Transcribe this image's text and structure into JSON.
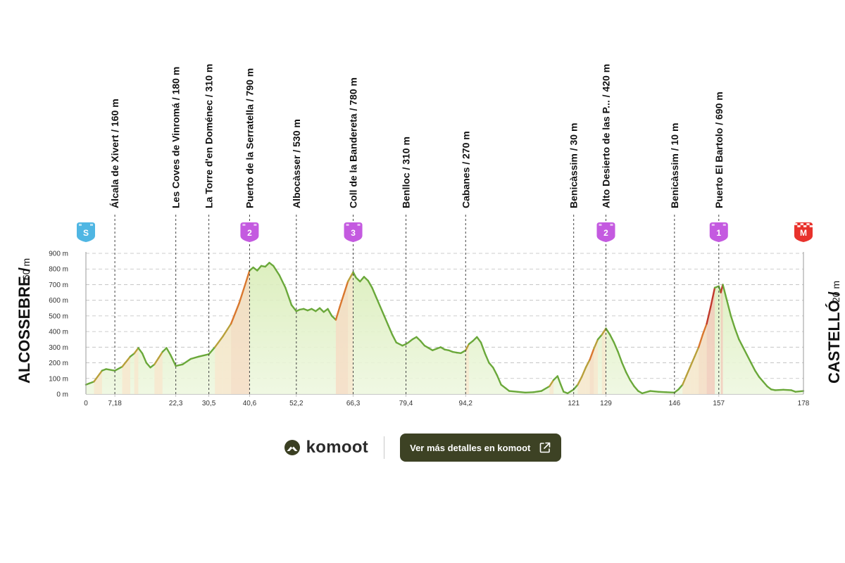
{
  "chart_data": {
    "type": "area",
    "title": "",
    "xlabel": "",
    "ylabel": "",
    "xlim": [
      0,
      178
    ],
    "ylim": [
      0,
      900
    ],
    "y_unit": "m",
    "yticks": [
      {
        "v": 0,
        "label": "0 m"
      },
      {
        "v": 100,
        "label": "100 m"
      },
      {
        "v": 200,
        "label": "200 m"
      },
      {
        "v": 300,
        "label": "300 m"
      },
      {
        "v": 400,
        "label": "400 m"
      },
      {
        "v": 500,
        "label": "500 m"
      },
      {
        "v": 600,
        "label": "600 m"
      },
      {
        "v": 700,
        "label": "700 m"
      },
      {
        "v": 800,
        "label": "800 m"
      },
      {
        "v": 900,
        "label": "900 m"
      }
    ],
    "xticks": [
      {
        "v": 0,
        "label": "0"
      },
      {
        "v": 7.18,
        "label": "7,18"
      },
      {
        "v": 22.3,
        "label": "22,3"
      },
      {
        "v": 30.5,
        "label": "30,5"
      },
      {
        "v": 40.6,
        "label": "40,6"
      },
      {
        "v": 52.2,
        "label": "52,2"
      },
      {
        "v": 66.3,
        "label": "66,3"
      },
      {
        "v": 79.4,
        "label": "79,4"
      },
      {
        "v": 94.2,
        "label": "94,2"
      },
      {
        "v": 121,
        "label": "121"
      },
      {
        "v": 129,
        "label": "129"
      },
      {
        "v": 146,
        "label": "146"
      },
      {
        "v": 157,
        "label": "157"
      },
      {
        "v": 178,
        "label": "178"
      }
    ],
    "grid": true,
    "start": {
      "name": "ALCOSSEBRE /",
      "alt": "60 m",
      "badge": "S",
      "badge_color": "#4fb6e3"
    },
    "finish": {
      "name": "CASTELLÓ /",
      "alt": "20 m",
      "badge": "M",
      "badge_color": "#e8322c"
    },
    "waypoints": [
      {
        "km": 7.18,
        "label": "Álcala de Xivert / 160 m"
      },
      {
        "km": 22.3,
        "label": "Les Coves de Vinromá / 180 m"
      },
      {
        "km": 30.5,
        "label": "La Torre d'en Doménec / 310 m"
      },
      {
        "km": 40.6,
        "label": "Puerto de la Serratella / 790 m",
        "cat": "2"
      },
      {
        "km": 52.2,
        "label": "Albocàsser / 530 m"
      },
      {
        "km": 66.3,
        "label": "Coll de la Bandereta / 780 m",
        "cat": "3"
      },
      {
        "km": 79.4,
        "label": "Benlloc / 310 m"
      },
      {
        "km": 94.2,
        "label": "Cabanes / 270 m"
      },
      {
        "km": 121,
        "label": "Benicàssim / 30 m"
      },
      {
        "km": 129,
        "label": "Alto Desierto de las P... / 420 m",
        "cat": "2"
      },
      {
        "km": 146,
        "label": "Benicàssim / 10 m"
      },
      {
        "km": 157,
        "label": "Puerto El Bartolo / 690 m",
        "cat": "1"
      }
    ],
    "climb_badge_color": "#c45ae0",
    "profile": [
      [
        0,
        60
      ],
      [
        2,
        80
      ],
      [
        4,
        150
      ],
      [
        5,
        160
      ],
      [
        7.18,
        150
      ],
      [
        9,
        175
      ],
      [
        11,
        240
      ],
      [
        12,
        260
      ],
      [
        13,
        295
      ],
      [
        14,
        260
      ],
      [
        15,
        200
      ],
      [
        16,
        170
      ],
      [
        17,
        190
      ],
      [
        18,
        230
      ],
      [
        19,
        270
      ],
      [
        20,
        295
      ],
      [
        21,
        250
      ],
      [
        22.3,
        180
      ],
      [
        24,
        190
      ],
      [
        26,
        225
      ],
      [
        28,
        240
      ],
      [
        30.5,
        255
      ],
      [
        32,
        300
      ],
      [
        34,
        370
      ],
      [
        36,
        450
      ],
      [
        38,
        580
      ],
      [
        39.5,
        700
      ],
      [
        40.6,
        790
      ],
      [
        41.5,
        810
      ],
      [
        42.5,
        790
      ],
      [
        43.5,
        820
      ],
      [
        44.5,
        815
      ],
      [
        45.5,
        840
      ],
      [
        46.5,
        820
      ],
      [
        48,
        760
      ],
      [
        49.5,
        680
      ],
      [
        51,
        570
      ],
      [
        52.2,
        530
      ],
      [
        53,
        540
      ],
      [
        54,
        545
      ],
      [
        55,
        535
      ],
      [
        56,
        545
      ],
      [
        57,
        530
      ],
      [
        58,
        550
      ],
      [
        59,
        525
      ],
      [
        60,
        545
      ],
      [
        61,
        500
      ],
      [
        62,
        475
      ],
      [
        63,
        560
      ],
      [
        64,
        640
      ],
      [
        65,
        720
      ],
      [
        66.3,
        780
      ],
      [
        67,
        745
      ],
      [
        68,
        720
      ],
      [
        69,
        750
      ],
      [
        70,
        725
      ],
      [
        71,
        680
      ],
      [
        72,
        620
      ],
      [
        73,
        560
      ],
      [
        74,
        500
      ],
      [
        75,
        440
      ],
      [
        76,
        380
      ],
      [
        77,
        330
      ],
      [
        78.5,
        310
      ],
      [
        79.4,
        320
      ],
      [
        80,
        330
      ],
      [
        81,
        350
      ],
      [
        82,
        365
      ],
      [
        83,
        340
      ],
      [
        84,
        310
      ],
      [
        85,
        295
      ],
      [
        86,
        280
      ],
      [
        87,
        290
      ],
      [
        88,
        300
      ],
      [
        89,
        285
      ],
      [
        90,
        280
      ],
      [
        91,
        270
      ],
      [
        92,
        265
      ],
      [
        93,
        262
      ],
      [
        94.2,
        280
      ],
      [
        95,
        320
      ],
      [
        96,
        340
      ],
      [
        97,
        365
      ],
      [
        98,
        330
      ],
      [
        99,
        260
      ],
      [
        100,
        200
      ],
      [
        101,
        170
      ],
      [
        102,
        120
      ],
      [
        103,
        60
      ],
      [
        104,
        40
      ],
      [
        105,
        20
      ],
      [
        107,
        15
      ],
      [
        109,
        10
      ],
      [
        111,
        12
      ],
      [
        113,
        20
      ],
      [
        115,
        50
      ],
      [
        116,
        90
      ],
      [
        117,
        115
      ],
      [
        117.8,
        60
      ],
      [
        118.5,
        15
      ],
      [
        119.5,
        5
      ],
      [
        121,
        30
      ],
      [
        122,
        60
      ],
      [
        123,
        110
      ],
      [
        124,
        170
      ],
      [
        125,
        220
      ],
      [
        126,
        290
      ],
      [
        127,
        350
      ],
      [
        128,
        380
      ],
      [
        129,
        420
      ],
      [
        130,
        380
      ],
      [
        131,
        330
      ],
      [
        132,
        270
      ],
      [
        133,
        200
      ],
      [
        134,
        140
      ],
      [
        135,
        90
      ],
      [
        136,
        50
      ],
      [
        137,
        20
      ],
      [
        138,
        5
      ],
      [
        140,
        20
      ],
      [
        142,
        15
      ],
      [
        144,
        12
      ],
      [
        146,
        10
      ],
      [
        147,
        30
      ],
      [
        148,
        60
      ],
      [
        149,
        120
      ],
      [
        150,
        180
      ],
      [
        151,
        240
      ],
      [
        152,
        300
      ],
      [
        153,
        380
      ],
      [
        154,
        450
      ],
      [
        155,
        560
      ],
      [
        156,
        680
      ],
      [
        157,
        690
      ],
      [
        157.5,
        650
      ],
      [
        158,
        700
      ],
      [
        159,
        600
      ],
      [
        160,
        500
      ],
      [
        161,
        420
      ],
      [
        162,
        350
      ],
      [
        163,
        300
      ],
      [
        164,
        250
      ],
      [
        165,
        200
      ],
      [
        166,
        150
      ],
      [
        167,
        110
      ],
      [
        168,
        80
      ],
      [
        169,
        50
      ],
      [
        170,
        30
      ],
      [
        171,
        25
      ],
      [
        173,
        28
      ],
      [
        175,
        25
      ],
      [
        176,
        15
      ],
      [
        178,
        20
      ]
    ]
  },
  "footer": {
    "brand": "komoot",
    "cta_label": "Ver más detalles en komoot"
  }
}
